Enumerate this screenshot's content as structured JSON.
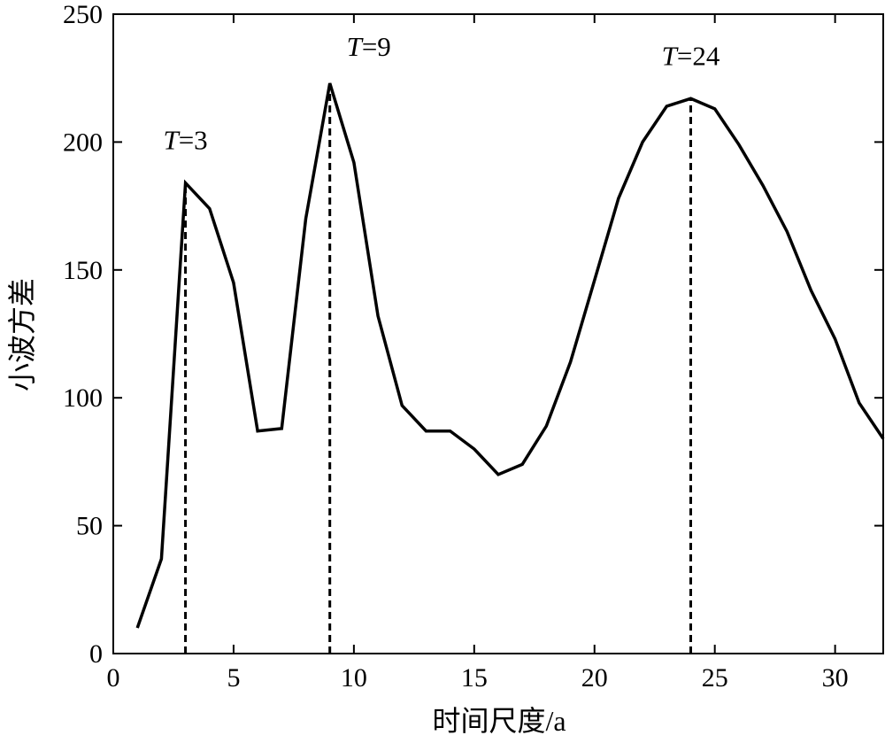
{
  "chart_data": {
    "type": "line",
    "xlabel": "时间尺度/a",
    "ylabel": "小波方差",
    "xlim": [
      0,
      32
    ],
    "ylim": [
      0,
      250
    ],
    "x_ticks": [
      0,
      5,
      10,
      15,
      20,
      25,
      30
    ],
    "y_ticks": [
      0,
      50,
      100,
      150,
      200,
      250
    ],
    "grid": false,
    "series": [
      {
        "color": "#000000",
        "x": [
          1,
          2,
          3,
          4,
          5,
          6,
          7,
          8,
          9,
          10,
          11,
          12,
          13,
          14,
          15,
          16,
          17,
          18,
          19,
          20,
          21,
          22,
          23,
          24,
          25,
          26,
          27,
          28,
          29,
          30,
          31,
          32
        ],
        "y": [
          10,
          37,
          184,
          174,
          145,
          87,
          88,
          170,
          223,
          192,
          132,
          97,
          87,
          87,
          80,
          70,
          74,
          89,
          114,
          146,
          178,
          200,
          214,
          217,
          213,
          199,
          183,
          165,
          142,
          123,
          98,
          84
        ]
      }
    ],
    "annotations": [
      {
        "label_italic": "T",
        "label_rest": "=3",
        "x": 3,
        "y": 184
      },
      {
        "label_italic": "T",
        "label_rest": "=9",
        "x": 9,
        "y": 223
      },
      {
        "label_italic": "T",
        "label_rest": "=24",
        "x": 24,
        "y": 217
      }
    ]
  }
}
